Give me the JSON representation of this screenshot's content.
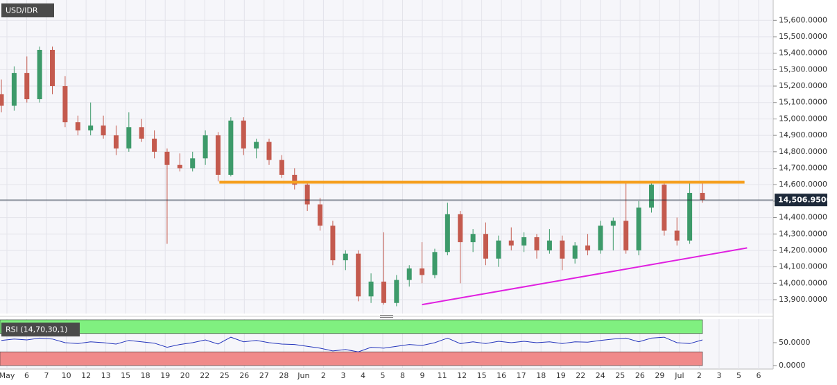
{
  "chart_data": {
    "type": "candlestick",
    "title": "USD/IDR",
    "up_color": "#3d9a6a",
    "down_color": "#c45a4e",
    "grid": true,
    "xlim": [
      -0.109,
      60.55
    ],
    "ylim": [
      13815.6,
      15723.7
    ],
    "yticks": [
      {
        "value": 13900,
        "label": "13,900.0000"
      },
      {
        "value": 14000,
        "label": "14,000.0000"
      },
      {
        "value": 14100,
        "label": "14,100.0000"
      },
      {
        "value": 14200,
        "label": "14,200.0000"
      },
      {
        "value": 14300,
        "label": "14,300.0000"
      },
      {
        "value": 14400,
        "label": "14,400.0000"
      },
      {
        "value": 14500,
        "label": "14,500.0000"
      },
      {
        "value": 14600,
        "label": "14,600.0000"
      },
      {
        "value": 14700,
        "label": "14,700.0000"
      },
      {
        "value": 14800,
        "label": "14,800.0000"
      },
      {
        "value": 14900,
        "label": "14,900.0000"
      },
      {
        "value": 15000,
        "label": "15,000.0000"
      },
      {
        "value": 15100,
        "label": "15,100.0000"
      },
      {
        "value": 15200,
        "label": "15,200.0000"
      },
      {
        "value": 15300,
        "label": "15,300.0000"
      },
      {
        "value": 15400,
        "label": "15,400.0000"
      },
      {
        "value": 15500,
        "label": "15,500.0000"
      },
      {
        "value": 15600,
        "label": "15,600.0000"
      }
    ],
    "last_price": {
      "value": 14506.95,
      "label": "14,506.9500"
    },
    "open": [
      15150,
      15080,
      15280,
      15120,
      15420,
      15200,
      14980,
      14930,
      14960,
      14900,
      14820,
      14950,
      14880,
      14800,
      14720,
      14700,
      14760,
      14900,
      14660,
      14990,
      14820,
      14860,
      14750,
      14660,
      14600,
      14480,
      14350,
      14140,
      14180,
      13920,
      14010,
      13880,
      14020,
      14090,
      14050,
      14190,
      14420,
      14250,
      14300,
      14150,
      14260,
      14230,
      14280,
      14200,
      14260,
      14150,
      14230,
      14200,
      14350,
      14380,
      14200,
      14460,
      14600,
      14320,
      14260,
      14550
    ],
    "high": [
      15240,
      15320,
      15380,
      15440,
      15440,
      15260,
      15020,
      15100,
      15020,
      14960,
      15040,
      15000,
      14930,
      14820,
      14790,
      14800,
      14930,
      14920,
      15010,
      15010,
      14880,
      14880,
      14780,
      14700,
      14620,
      14520,
      14380,
      14200,
      14200,
      14060,
      14310,
      14050,
      14110,
      14250,
      14210,
      14490,
      14440,
      14330,
      14370,
      14290,
      14340,
      14310,
      14300,
      14330,
      14290,
      14250,
      14300,
      14380,
      14400,
      14610,
      14500,
      14620,
      14620,
      14400,
      14620,
      14610
    ],
    "low": [
      15040,
      15050,
      15100,
      15100,
      15150,
      14950,
      14900,
      14900,
      14880,
      14780,
      14800,
      14860,
      14760,
      14240,
      14680,
      14680,
      14720,
      14620,
      14650,
      14780,
      14760,
      14720,
      14640,
      14570,
      14440,
      14320,
      14110,
      14080,
      13890,
      13880,
      13870,
      13860,
      13980,
      14000,
      14030,
      14170,
      14000,
      14190,
      14110,
      14100,
      14200,
      14190,
      14150,
      14180,
      14080,
      14120,
      14170,
      14180,
      14200,
      14180,
      14170,
      14430,
      14290,
      14230,
      14240,
      14490
    ],
    "close": [
      15080,
      15280,
      15120,
      15420,
      15200,
      14980,
      14930,
      14960,
      14900,
      14820,
      14950,
      14880,
      14800,
      14720,
      14700,
      14760,
      14900,
      14660,
      14990,
      14820,
      14860,
      14750,
      14660,
      14600,
      14480,
      14350,
      14140,
      14180,
      13920,
      14010,
      13880,
      14020,
      14090,
      14050,
      14190,
      14420,
      14250,
      14300,
      14150,
      14260,
      14230,
      14280,
      14200,
      14260,
      14150,
      14230,
      14200,
      14350,
      14380,
      14200,
      14460,
      14600,
      14320,
      14260,
      14550,
      14506.95
    ],
    "resistance": {
      "value": 14615,
      "x": [
        17.1,
        58.3
      ],
      "color": "#f5a020"
    },
    "support": {
      "x": [
        33.0,
        58.5
      ],
      "y": [
        13870,
        14215
      ],
      "color": "#e020e0"
    },
    "date_labels": [
      "May",
      "6",
      "7",
      "10",
      "12",
      "13",
      "15",
      "18",
      "19",
      "20",
      "22",
      "25",
      "26",
      "27",
      "28",
      "Jun",
      "2",
      "3",
      "4",
      "5",
      "8",
      "9",
      "11",
      "12",
      "15",
      "16",
      "17",
      "18",
      "19",
      "22",
      "24",
      "25",
      "26",
      "29",
      "Jul",
      "2",
      "3",
      "5",
      "6"
    ],
    "rsi": {
      "title": "RSI (14,70,30,1)",
      "color": "#2233bb",
      "overbought": 70,
      "oversold": 30,
      "overbought_color": "#80f080",
      "oversold_color": "#f08a8a",
      "ylim": [
        0,
        100
      ],
      "yticks": [
        {
          "value": 50,
          "label": "50.0000"
        },
        {
          "value": 0,
          "label": "0.0000"
        }
      ],
      "values": [
        55,
        58,
        56,
        60,
        58,
        50,
        48,
        52,
        50,
        47,
        55,
        52,
        49,
        40,
        46,
        50,
        56,
        47,
        62,
        52,
        55,
        50,
        47,
        46,
        42,
        38,
        32,
        35,
        30,
        40,
        38,
        42,
        46,
        44,
        50,
        60,
        48,
        52,
        48,
        53,
        50,
        53,
        50,
        52,
        48,
        52,
        51,
        55,
        58,
        60,
        52,
        60,
        62,
        50,
        48,
        56
      ]
    }
  }
}
